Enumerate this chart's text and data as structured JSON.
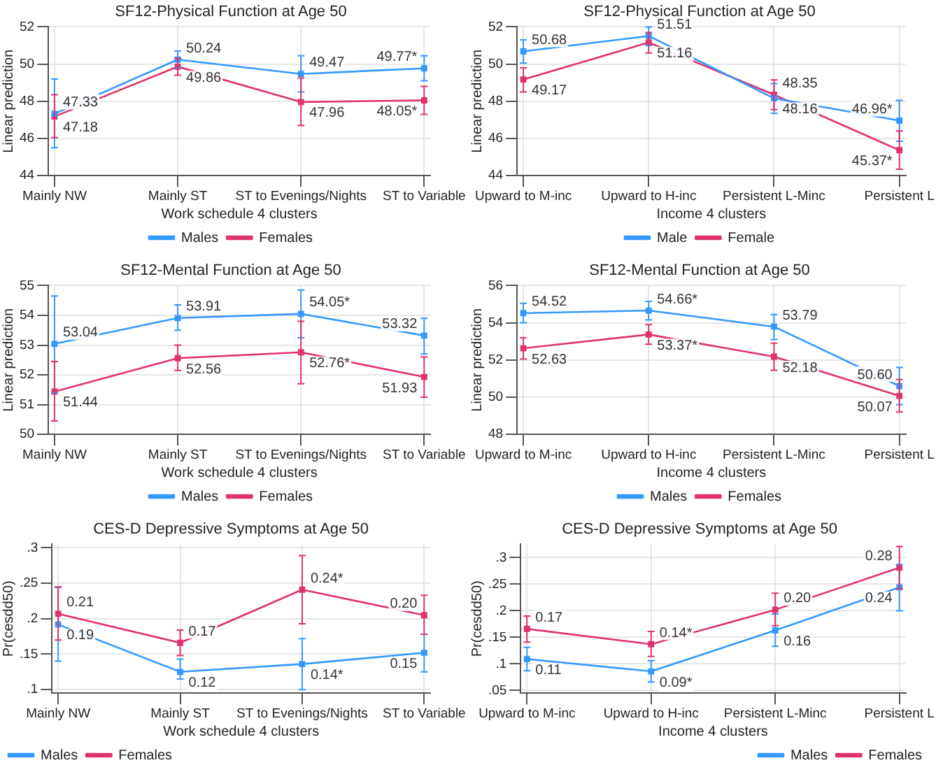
{
  "chart_data": [
    {
      "type": "line",
      "title": "SF12-Physical Function at Age 50",
      "xlabel": "Work schedule 4 clusters",
      "ylabel": "Linear prediction",
      "categories": [
        "Mainly NW",
        "Mainly ST",
        "ST to Evenings/Nights",
        "ST to Variable"
      ],
      "ylim": [
        44,
        52
      ],
      "yticks": [
        44,
        46,
        48,
        50,
        52
      ],
      "grid": true,
      "legend": "bottom",
      "marker": "square",
      "series": [
        {
          "name": "Males",
          "color": "#3399ff",
          "values": [
            47.33,
            50.24,
            49.47,
            49.77
          ],
          "errors": [
            [
              45.5,
              49.2
            ],
            [
              49.8,
              50.7
            ],
            [
              48.5,
              50.45
            ],
            [
              49.1,
              50.45
            ]
          ],
          "value_labels": [
            "47.33",
            "50.24",
            "49.47",
            "49.77*"
          ]
        },
        {
          "name": "Females",
          "color": "#e0336a",
          "values": [
            47.18,
            49.86,
            47.96,
            48.05
          ],
          "errors": [
            [
              46.05,
              48.35
            ],
            [
              49.4,
              50.3
            ],
            [
              46.7,
              49.25
            ],
            [
              47.3,
              48.8
            ]
          ],
          "value_labels": [
            "47.18",
            "49.86",
            "47.96",
            "48.05*"
          ]
        }
      ]
    },
    {
      "type": "line",
      "title": "SF12-Physical Function at Age 50",
      "xlabel": "Income 4 clusters",
      "ylabel": "Linear prediction",
      "categories": [
        "Upward to M-inc",
        "Upward to H-inc",
        "Persistent L-Minc",
        "Persistent L"
      ],
      "ylim": [
        44,
        52
      ],
      "yticks": [
        44,
        46,
        48,
        50,
        52
      ],
      "grid": true,
      "legend": "bottom",
      "marker": "square",
      "series": [
        {
          "name": "Male",
          "color": "#3399ff",
          "values": [
            50.68,
            51.51,
            48.16,
            46.96
          ],
          "errors": [
            [
              50.05,
              51.3
            ],
            [
              51.0,
              52.0
            ],
            [
              47.35,
              48.95
            ],
            [
              45.85,
              48.05
            ]
          ],
          "value_labels": [
            "50.68",
            "51.51",
            "48.16",
            "46.96*"
          ]
        },
        {
          "name": "Female",
          "color": "#e0336a",
          "values": [
            49.17,
            51.16,
            48.35,
            45.37
          ],
          "errors": [
            [
              48.5,
              49.8
            ],
            [
              50.6,
              51.7
            ],
            [
              47.55,
              49.15
            ],
            [
              44.35,
              46.4
            ]
          ],
          "value_labels": [
            "49.17",
            "51.16",
            "48.35",
            "45.37*"
          ]
        }
      ]
    },
    {
      "type": "line",
      "title": "SF12-Mental Function at Age 50",
      "xlabel": "Work schedule 4 clusters",
      "ylabel": "Linear prediction",
      "categories": [
        "Mainly NW",
        "Mainly ST",
        "ST to Evenings/Nights",
        "ST to Variable"
      ],
      "ylim": [
        50,
        55
      ],
      "yticks": [
        50,
        51,
        52,
        53,
        54,
        55
      ],
      "grid": true,
      "legend": "bottom",
      "marker": "square",
      "series": [
        {
          "name": "Males",
          "color": "#3399ff",
          "values": [
            53.04,
            53.91,
            54.05,
            53.32
          ],
          "errors": [
            [
              51.4,
              54.65
            ],
            [
              53.5,
              54.35
            ],
            [
              53.25,
              54.85
            ],
            [
              52.7,
              53.9
            ]
          ],
          "value_labels": [
            "53.04",
            "53.91",
            "54.05*",
            "53.32"
          ]
        },
        {
          "name": "Females",
          "color": "#e0336a",
          "values": [
            51.44,
            52.56,
            52.76,
            51.93
          ],
          "errors": [
            [
              50.45,
              52.45
            ],
            [
              52.15,
              53.0
            ],
            [
              51.7,
              53.8
            ],
            [
              51.25,
              52.6
            ]
          ],
          "value_labels": [
            "51.44",
            "52.56",
            "52.76*",
            "51.93"
          ]
        }
      ]
    },
    {
      "type": "line",
      "title": "SF12-Mental Function at Age 50",
      "xlabel": "Income 4 clusters",
      "ylabel": "Linear prediction",
      "categories": [
        "Upward to M-inc",
        "Upward to H-inc",
        "Persistent L-Minc",
        "Persistent L"
      ],
      "ylim": [
        48,
        56
      ],
      "yticks": [
        48,
        50,
        52,
        54,
        56
      ],
      "grid": true,
      "legend": "bottom",
      "marker": "square",
      "series": [
        {
          "name": "Males",
          "color": "#3399ff",
          "values": [
            54.52,
            54.66,
            53.79,
            50.6
          ],
          "errors": [
            [
              54.0,
              55.05
            ],
            [
              54.15,
              55.15
            ],
            [
              53.1,
              54.45
            ],
            [
              49.6,
              51.6
            ]
          ],
          "value_labels": [
            "54.52",
            "54.66*",
            "53.79",
            "50.60"
          ]
        },
        {
          "name": "Females",
          "color": "#e0336a",
          "values": [
            52.63,
            53.37,
            52.18,
            50.07
          ],
          "errors": [
            [
              52.05,
              53.2
            ],
            [
              52.85,
              53.9
            ],
            [
              51.45,
              52.9
            ],
            [
              49.2,
              50.95
            ]
          ],
          "value_labels": [
            "52.63",
            "53.37*",
            "52.18",
            "50.07"
          ]
        }
      ]
    },
    {
      "type": "line",
      "title": "CES-D Depressive Symptoms at Age 50",
      "xlabel": "Work schedule 4 clusters",
      "ylabel": "Pr(cesdd50)",
      "categories": [
        "Mainly NW",
        "Mainly ST",
        "ST to Evenings/Nights",
        "ST to Variable"
      ],
      "ylim": [
        0.095,
        0.305
      ],
      "yticks": [
        {
          "value": 0.1,
          "label": ".1"
        },
        {
          "value": 0.15,
          "label": ".15"
        },
        {
          "value": 0.2,
          "label": ".2"
        },
        {
          "value": 0.25,
          "label": ".25"
        },
        {
          "value": 0.3,
          "label": ".3"
        }
      ],
      "grid": true,
      "legend": "bottom left",
      "marker": "square",
      "series": [
        {
          "name": "Males",
          "color": "#3399ff",
          "values": [
            0.192,
            0.125,
            0.136,
            0.152
          ],
          "errors": [
            [
              0.14,
              0.244
            ],
            [
              0.115,
              0.143
            ],
            [
              0.1,
              0.172
            ],
            [
              0.125,
              0.178
            ]
          ],
          "value_labels": [
            "0.19",
            "0.12",
            "0.14*",
            "0.15"
          ]
        },
        {
          "name": "Females",
          "color": "#e0336a",
          "values": [
            0.207,
            0.166,
            0.241,
            0.205
          ],
          "errors": [
            [
              0.17,
              0.245
            ],
            [
              0.148,
              0.184
            ],
            [
              0.193,
              0.289
            ],
            [
              0.178,
              0.233
            ]
          ],
          "value_labels": [
            "0.21",
            "0.17",
            "0.24*",
            "0.20"
          ]
        }
      ]
    },
    {
      "type": "line",
      "title": "CES-D Depressive Symptoms at Age 50",
      "xlabel": "Income 4 clusters",
      "ylabel": "Pr(cesdd50)",
      "categories": [
        "Upward to M-inc",
        "Upward to H-inc",
        "Persistent L-Minc",
        "Persistent L"
      ],
      "ylim": [
        0.045,
        0.325
      ],
      "yticks": [
        {
          "value": 0.05,
          "label": ".05"
        },
        {
          "value": 0.1,
          "label": ".1"
        },
        {
          "value": 0.15,
          "label": ".15"
        },
        {
          "value": 0.2,
          "label": ".2"
        },
        {
          "value": 0.25,
          "label": ".25"
        },
        {
          "value": 0.3,
          "label": ".3"
        }
      ],
      "grid": true,
      "legend": "bottom right",
      "marker": "square",
      "series": [
        {
          "name": "Males",
          "color": "#3399ff",
          "values": [
            0.109,
            0.086,
            0.163,
            0.244
          ],
          "errors": [
            [
              0.087,
              0.131
            ],
            [
              0.066,
              0.106
            ],
            [
              0.133,
              0.194
            ],
            [
              0.2,
              0.287
            ]
          ],
          "value_labels": [
            "0.11",
            "0.09*",
            "0.16",
            "0.24"
          ]
        },
        {
          "name": "Females",
          "color": "#e0336a",
          "values": [
            0.166,
            0.137,
            0.202,
            0.281
          ],
          "errors": [
            [
              0.141,
              0.19
            ],
            [
              0.114,
              0.161
            ],
            [
              0.172,
              0.233
            ],
            [
              0.241,
              0.321
            ]
          ],
          "value_labels": [
            "0.17",
            "0.14*",
            "0.20",
            "0.28"
          ]
        }
      ]
    }
  ]
}
